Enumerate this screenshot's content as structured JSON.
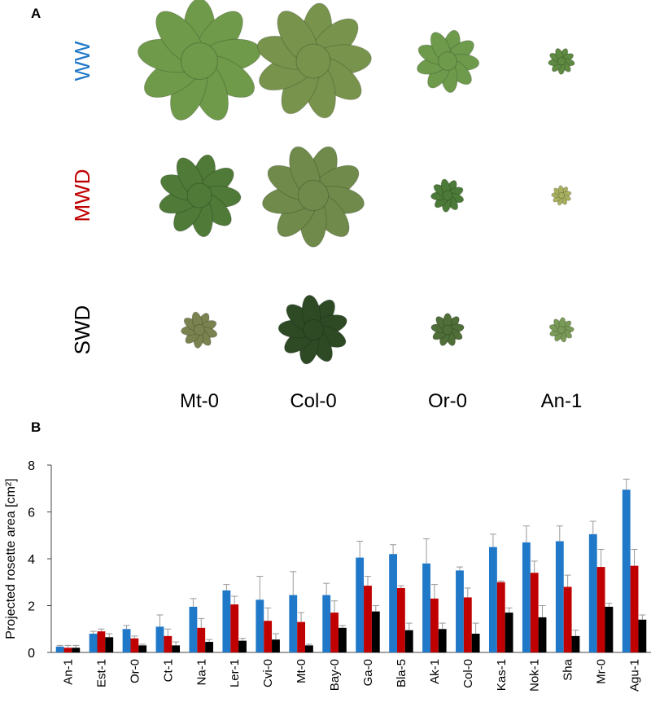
{
  "panel_labels": [
    "A",
    "B"
  ],
  "panel_a": {
    "columns": [
      "Mt-0",
      "Col-0",
      "Or-0",
      "An-1"
    ]
  },
  "chart_data": {
    "type": "bar",
    "ylabel": "Projected rosette area [cm²]",
    "categories": [
      "An-1",
      "Est-1",
      "Or-0",
      "Ct-1",
      "Na-1",
      "Ler-1",
      "Cvi-0",
      "Mt-0",
      "Bay-0",
      "Ga-0",
      "Bla-5",
      "Ak-1",
      "Col-0",
      "Kas-1",
      "Nok-1",
      "Sha",
      "Mr-0",
      "Agu-1"
    ],
    "series": [
      {
        "name": "WW",
        "color": "#1f78c8",
        "values": [
          0.25,
          0.8,
          1.0,
          1.1,
          1.95,
          2.65,
          2.25,
          2.45,
          2.45,
          4.05,
          4.2,
          3.8,
          3.5,
          4.5,
          4.7,
          4.75,
          5.05,
          6.95
        ],
        "errors": [
          0.05,
          0.1,
          0.15,
          0.5,
          0.35,
          0.25,
          1.0,
          1.0,
          0.5,
          0.7,
          0.4,
          1.05,
          0.15,
          0.55,
          0.7,
          0.65,
          0.55,
          0.45
        ]
      },
      {
        "name": "MWD",
        "color": "#c00000",
        "values": [
          0.2,
          0.9,
          0.6,
          0.7,
          1.05,
          2.05,
          1.35,
          1.3,
          1.7,
          2.85,
          2.75,
          2.3,
          2.35,
          3.0,
          3.4,
          2.8,
          3.65,
          3.7
        ],
        "errors": [
          0.1,
          0.1,
          0.1,
          0.3,
          0.4,
          0.35,
          0.55,
          0.4,
          0.5,
          0.4,
          0.1,
          0.6,
          0.4,
          0.05,
          0.5,
          0.5,
          0.75,
          0.7
        ]
      },
      {
        "name": "SWD",
        "color": "#000000",
        "values": [
          0.2,
          0.65,
          0.3,
          0.3,
          0.45,
          0.5,
          0.55,
          0.3,
          1.05,
          1.75,
          0.95,
          1.0,
          0.8,
          1.7,
          1.5,
          0.7,
          1.95,
          1.4
        ],
        "errors": [
          0.1,
          0.15,
          0.05,
          0.15,
          0.1,
          0.1,
          0.25,
          0.05,
          0.1,
          0.25,
          0.3,
          0.25,
          0.45,
          0.2,
          0.5,
          0.25,
          0.15,
          0.2
        ]
      }
    ],
    "ylim": [
      0,
      8
    ],
    "yticks": [
      0,
      2,
      4,
      6,
      8
    ],
    "grid": false
  }
}
